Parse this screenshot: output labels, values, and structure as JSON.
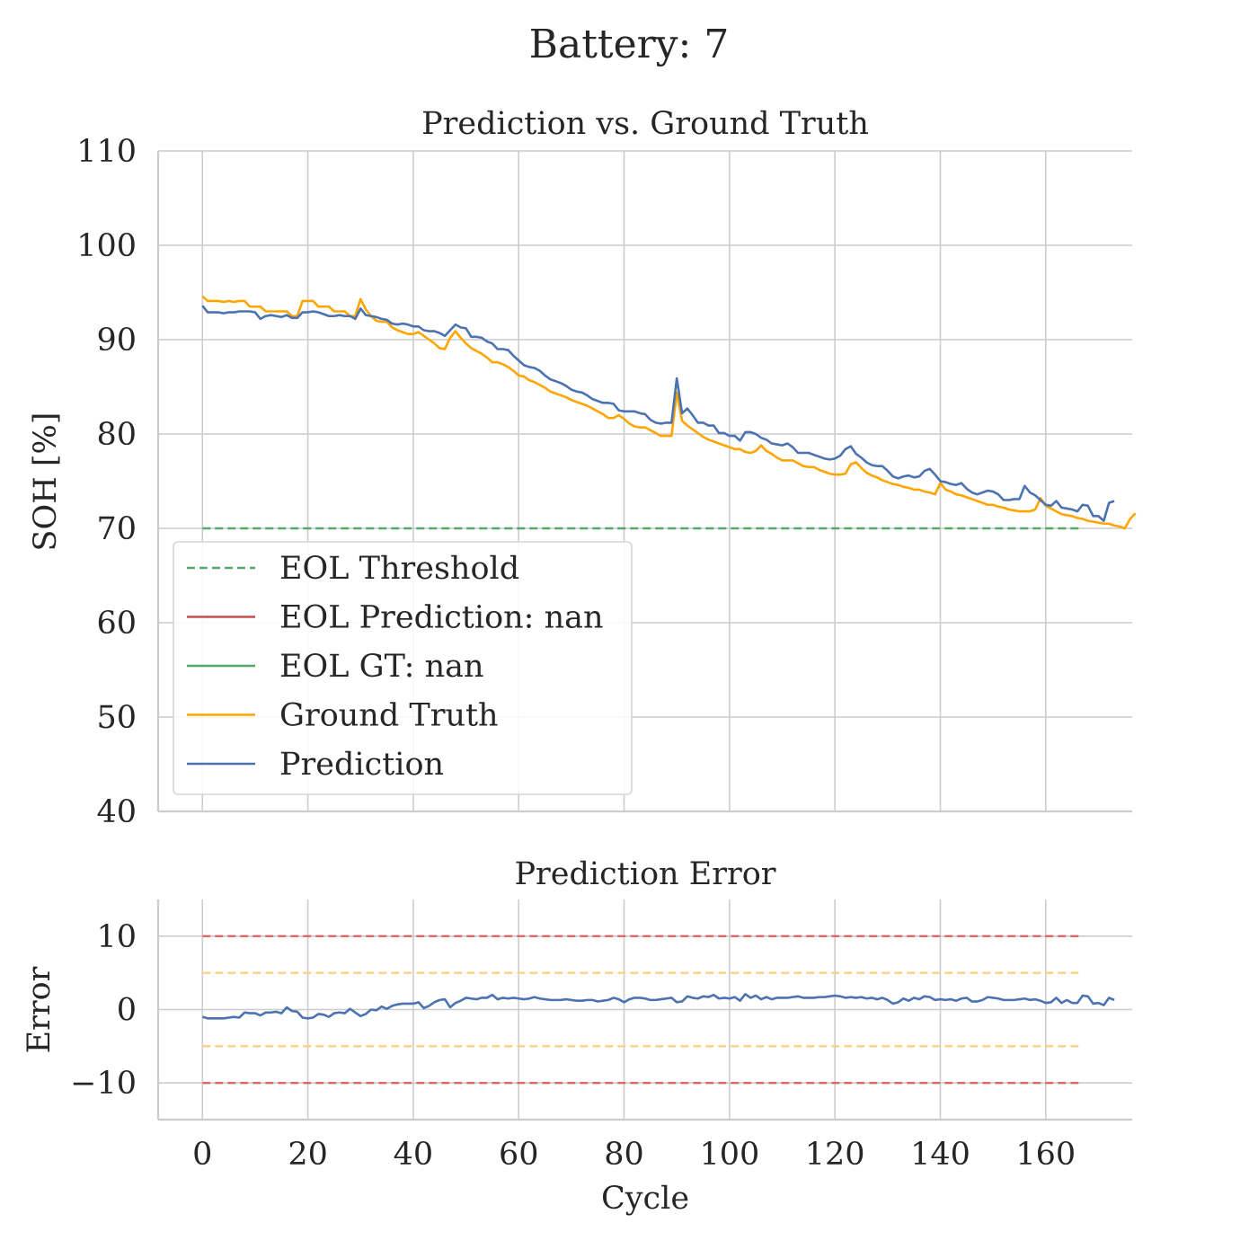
{
  "figure": {
    "suptitle": "Battery: 7"
  },
  "chart_data": [
    {
      "type": "line",
      "title": "Prediction vs. Ground Truth",
      "xlabel": "",
      "ylabel": "SOH [%]",
      "xlim": [
        -8.4,
        176.4
      ],
      "ylim": [
        40,
        110
      ],
      "xticks": [
        0,
        20,
        40,
        60,
        80,
        100,
        120,
        140,
        160
      ],
      "yticks": [
        40,
        50,
        60,
        70,
        80,
        90,
        100,
        110
      ],
      "grid": true,
      "legend_position": "lower-left",
      "legend": [
        {
          "label": "EOL Threshold",
          "color": "#55a868",
          "style": "dashed"
        },
        {
          "label": "EOL Prediction: nan",
          "color": "#c44e52",
          "style": "solid"
        },
        {
          "label": "EOL GT: nan",
          "color": "#55a868",
          "style": "solid"
        },
        {
          "label": "Ground Truth",
          "color": "#ffa500",
          "style": "solid"
        },
        {
          "label": "Prediction",
          "color": "#4c72b0",
          "style": "solid"
        }
      ],
      "hlines": [
        {
          "y": 70,
          "x_range": [
            0,
            167
          ],
          "color": "#55a868",
          "style": "dashed",
          "name": "EOL Threshold"
        }
      ],
      "series": [
        {
          "name": "Ground Truth",
          "color": "#ffa500",
          "x_start": 0,
          "values": [
            94.6,
            94.1,
            94.1,
            94.1,
            94.0,
            94.1,
            94.0,
            94.1,
            94.1,
            93.5,
            93.5,
            93.5,
            93.0,
            93.0,
            93.0,
            93.0,
            93.0,
            92.5,
            92.5,
            94.1,
            94.1,
            94.1,
            93.5,
            93.5,
            93.5,
            93.0,
            93.0,
            93.0,
            92.5,
            92.5,
            94.3,
            93.2,
            92.5,
            92.0,
            91.9,
            91.9,
            91.3,
            91.0,
            90.8,
            90.6,
            90.6,
            90.8,
            90.4,
            90.0,
            89.6,
            89.1,
            89.0,
            90.2,
            90.9,
            90.2,
            89.6,
            89.1,
            88.8,
            88.5,
            88.1,
            87.6,
            87.6,
            87.4,
            87.1,
            86.7,
            86.2,
            86.1,
            85.7,
            85.5,
            85.2,
            84.9,
            84.5,
            84.3,
            84.1,
            83.9,
            83.6,
            83.4,
            83.2,
            83.0,
            82.7,
            82.4,
            82.1,
            81.7,
            81.7,
            82.0,
            81.6,
            81.1,
            80.8,
            80.7,
            80.7,
            80.4,
            80.1,
            79.8,
            79.8,
            79.8,
            84.4,
            81.4,
            80.9,
            80.5,
            80.1,
            79.7,
            79.4,
            79.2,
            79.0,
            78.8,
            78.6,
            78.4,
            78.4,
            78.1,
            78.0,
            78.2,
            78.8,
            78.2,
            77.9,
            77.5,
            77.2,
            77.2,
            77.2,
            76.9,
            76.6,
            76.5,
            76.5,
            76.2,
            76.0,
            75.8,
            75.7,
            75.7,
            75.8,
            76.8,
            77.0,
            76.4,
            75.9,
            75.6,
            75.4,
            75.1,
            74.9,
            74.7,
            74.6,
            74.4,
            74.3,
            74.1,
            74.1,
            73.9,
            73.8,
            73.6,
            74.8,
            74.1,
            73.9,
            73.6,
            73.5,
            73.3,
            73.1,
            72.9,
            72.7,
            72.5,
            72.5,
            72.3,
            72.2,
            72.0,
            71.9,
            71.8,
            71.8,
            71.8,
            72.0,
            73.2,
            72.4,
            72.1,
            71.8,
            71.5,
            71.4,
            71.3,
            71.1,
            71.0,
            70.8,
            70.7,
            70.6,
            70.5,
            70.5,
            70.3,
            70.2,
            70.0,
            71.0,
            71.6
          ]
        },
        {
          "name": "Prediction",
          "color": "#4c72b0",
          "x_start": 0,
          "values": [
            93.6,
            92.9,
            92.9,
            92.9,
            92.8,
            92.9,
            92.9,
            93.0,
            93.0,
            93.0,
            92.9,
            92.2,
            92.5,
            92.6,
            92.5,
            92.4,
            92.6,
            92.3,
            92.3,
            92.9,
            92.9,
            93.0,
            92.9,
            92.7,
            92.5,
            92.5,
            92.6,
            92.5,
            92.5,
            92.2,
            93.3,
            92.6,
            92.5,
            92.4,
            92.2,
            92.1,
            91.7,
            91.6,
            91.7,
            91.6,
            91.4,
            91.4,
            91.0,
            90.9,
            90.9,
            90.7,
            90.4,
            91.0,
            91.6,
            91.3,
            91.2,
            90.3,
            90.3,
            90.2,
            89.8,
            89.6,
            89.0,
            89.0,
            88.9,
            88.3,
            87.8,
            87.3,
            87.1,
            87.0,
            86.7,
            86.2,
            85.8,
            85.6,
            85.4,
            85.1,
            84.7,
            84.5,
            84.4,
            84.1,
            83.7,
            83.5,
            83.3,
            83.3,
            83.2,
            82.5,
            82.4,
            82.4,
            82.4,
            82.2,
            82.1,
            81.5,
            81.2,
            81.1,
            81.2,
            81.2,
            85.9,
            82.2,
            82.7,
            82.0,
            81.2,
            81.2,
            80.9,
            80.9,
            80.1,
            80.1,
            79.8,
            79.8,
            79.3,
            80.2,
            80.2,
            80.0,
            79.6,
            79.4,
            79.0,
            78.9,
            78.8,
            79.0,
            78.6,
            78.0,
            78.0,
            78.0,
            77.8,
            77.6,
            77.4,
            77.3,
            77.4,
            77.7,
            78.4,
            78.7,
            77.9,
            77.5,
            77.0,
            76.7,
            76.6,
            76.6,
            76.1,
            75.5,
            75.3,
            75.5,
            75.6,
            75.4,
            75.5,
            76.1,
            76.3,
            75.7,
            75.0,
            74.9,
            74.7,
            74.6,
            74.8,
            74.2,
            73.8,
            73.6,
            73.8,
            74.0,
            73.9,
            73.6,
            73.0,
            73.0,
            73.1,
            73.1,
            74.5,
            73.8,
            73.5,
            73.0,
            72.5,
            72.4,
            72.9,
            72.2,
            72.1,
            72.0,
            71.8,
            72.5,
            72.4,
            71.3,
            71.3,
            70.8,
            72.7,
            72.9
          ]
        }
      ]
    },
    {
      "type": "line",
      "title": "Prediction Error",
      "xlabel": "Cycle",
      "ylabel": "Error",
      "xlim": [
        -8.4,
        176.4
      ],
      "ylim": [
        -15,
        15
      ],
      "xticks": [
        0,
        20,
        40,
        60,
        80,
        100,
        120,
        140,
        160
      ],
      "yticks": [
        -10,
        0,
        10
      ],
      "ytick_labels": [
        "−10",
        "0",
        "10"
      ],
      "grid": true,
      "hlines": [
        {
          "y": 10,
          "x_range": [
            0,
            167
          ],
          "color": "#e06666",
          "style": "dashed"
        },
        {
          "y": 5,
          "x_range": [
            0,
            167
          ],
          "color": "#ffd080",
          "style": "dashed"
        },
        {
          "y": -5,
          "x_range": [
            0,
            167
          ],
          "color": "#ffd080",
          "style": "dashed"
        },
        {
          "y": -10,
          "x_range": [
            0,
            167
          ],
          "color": "#e06666",
          "style": "dashed"
        }
      ],
      "series": [
        {
          "name": "Prediction Error",
          "color": "#4c72b0",
          "x_start": 0,
          "values": [
            -1.0,
            -1.2,
            -1.2,
            -1.2,
            -1.2,
            -1.1,
            -1.0,
            -1.1,
            -0.4,
            -0.5,
            -0.5,
            -0.8,
            -0.4,
            -0.4,
            -0.3,
            -0.5,
            0.3,
            -0.2,
            -0.3,
            -1.1,
            -1.2,
            -1.1,
            -0.6,
            -0.7,
            -1.0,
            -0.5,
            -0.4,
            -0.5,
            0.1,
            -0.4,
            -0.9,
            -0.6,
            0.0,
            -0.1,
            0.4,
            0.1,
            0.5,
            0.7,
            0.8,
            0.8,
            0.8,
            1.0,
            0.2,
            0.5,
            1.0,
            1.3,
            1.4,
            0.3,
            0.9,
            1.2,
            1.6,
            1.5,
            1.4,
            1.6,
            1.6,
            2.0,
            1.4,
            1.6,
            1.5,
            1.6,
            1.5,
            1.4,
            1.5,
            1.7,
            1.5,
            1.4,
            1.3,
            1.3,
            1.3,
            1.4,
            1.3,
            1.2,
            1.2,
            1.3,
            1.3,
            1.1,
            1.2,
            1.3,
            1.6,
            1.4,
            1.0,
            1.4,
            1.6,
            1.6,
            1.5,
            1.3,
            1.3,
            1.4,
            1.5,
            1.6,
            1.0,
            1.1,
            1.8,
            1.6,
            1.5,
            1.8,
            1.7,
            2.0,
            1.5,
            1.6,
            1.5,
            1.7,
            1.2,
            2.1,
            1.6,
            1.9,
            1.4,
            1.7,
            1.4,
            1.6,
            1.6,
            1.6,
            1.7,
            1.8,
            1.6,
            1.6,
            1.6,
            1.7,
            1.7,
            1.8,
            1.9,
            1.8,
            1.6,
            1.7,
            1.6,
            1.7,
            1.5,
            1.6,
            1.4,
            1.6,
            1.3,
            0.8,
            1.0,
            1.5,
            1.2,
            1.6,
            1.4,
            1.8,
            1.7,
            1.3,
            1.4,
            1.3,
            1.4,
            1.2,
            1.5,
            1.6,
            1.1,
            1.1,
            1.3,
            1.7,
            1.6,
            1.5,
            1.3,
            1.3,
            1.3,
            1.4,
            1.5,
            1.3,
            1.4,
            1.2,
            0.9,
            1.0,
            1.6,
            0.9,
            1.3,
            0.9,
            0.9,
            1.9,
            1.8,
            0.8,
            0.9,
            0.6,
            1.6,
            1.3
          ]
        }
      ]
    }
  ]
}
